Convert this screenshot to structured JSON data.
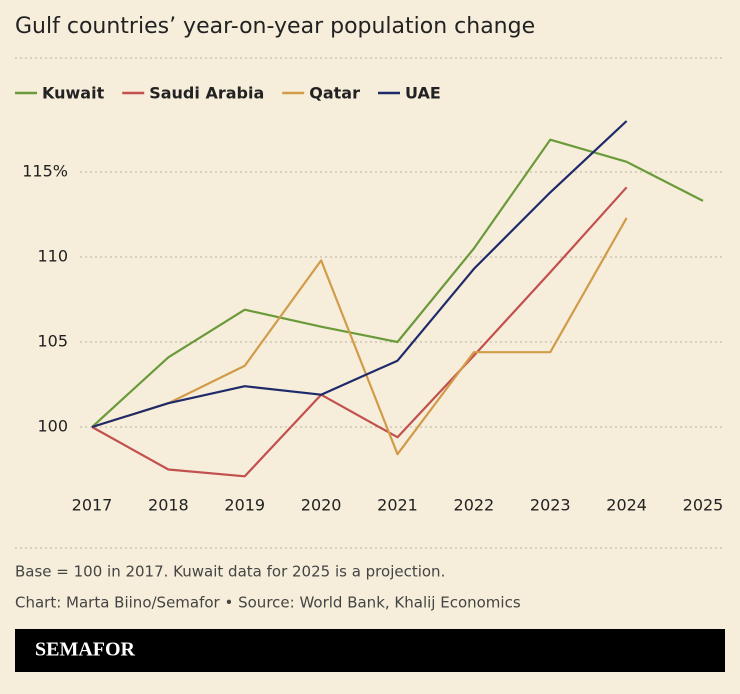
{
  "chart_data": {
    "type": "line",
    "title": "Gulf countries’ year-on-year population change",
    "categories": [
      "2017",
      "2018",
      "2019",
      "2020",
      "2021",
      "2022",
      "2023",
      "2024",
      "2025"
    ],
    "series": [
      {
        "name": "Kuwait",
        "color": "#6b9a3a",
        "values": [
          100,
          104.1,
          106.9,
          105.9,
          105.0,
          110.5,
          116.9,
          115.6,
          113.3
        ]
      },
      {
        "name": "Saudi Arabia",
        "color": "#c2504d",
        "values": [
          100,
          97.5,
          97.1,
          101.9,
          99.4,
          104.2,
          109.1,
          114.1,
          null
        ]
      },
      {
        "name": "Qatar",
        "color": "#d29b4a",
        "values": [
          100,
          101.4,
          103.6,
          109.8,
          98.4,
          104.4,
          104.4,
          112.3,
          null
        ]
      },
      {
        "name": "UAE",
        "color": "#1f2a6b",
        "values": [
          100,
          101.4,
          102.4,
          101.9,
          103.9,
          109.3,
          113.8,
          118.0,
          null
        ]
      }
    ],
    "ylim": [
      96.5,
      119.5
    ],
    "yticks": [
      100,
      105,
      110,
      {
        "value": 115,
        "label": "115%"
      }
    ],
    "grid": true,
    "legend": "top",
    "note": "Base = 100 in 2017. Kuwait data for 2025 is a projection.",
    "credit": "Chart: Marta Biino/Semafor • Source: World Bank, Khalij Economics",
    "logo": "SEMAFOR"
  }
}
